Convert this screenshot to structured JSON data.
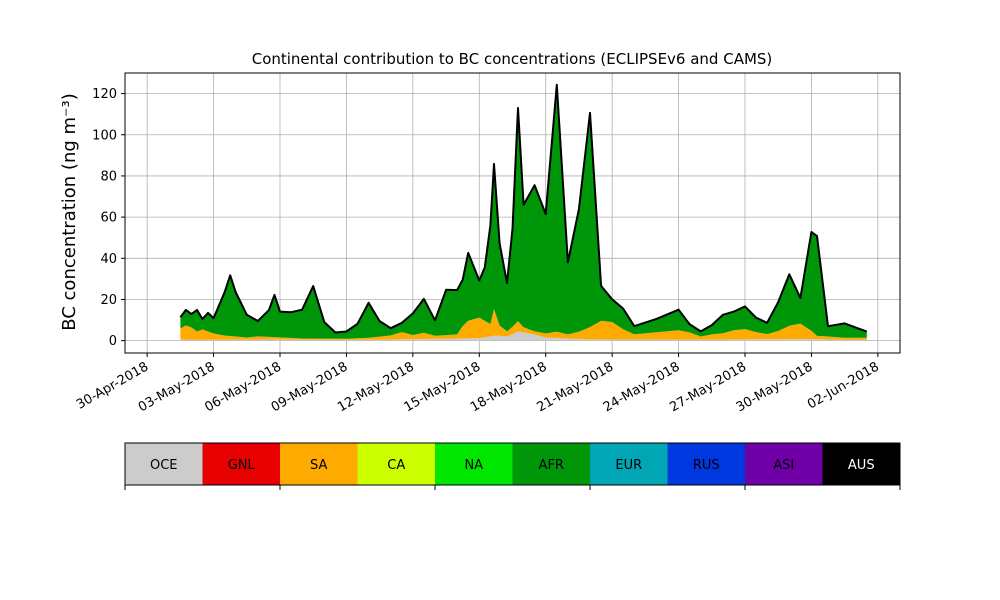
{
  "chart_data": {
    "type": "area",
    "title": "Continental contribution to BC concentrations (ECLIPSEv6 and CAMS)",
    "xlabel": "",
    "ylabel": "BC concentration (ng m⁻³)",
    "xlim": [
      "2018-04-29",
      "2018-06-03"
    ],
    "ylim": [
      -6,
      130
    ],
    "grid": true,
    "x_ticks": [
      {
        "date": "2018-04-30",
        "label": "30-Apr-2018"
      },
      {
        "date": "2018-05-03",
        "label": "03-May-2018"
      },
      {
        "date": "2018-05-06",
        "label": "06-May-2018"
      },
      {
        "date": "2018-05-09",
        "label": "09-May-2018"
      },
      {
        "date": "2018-05-12",
        "label": "12-May-2018"
      },
      {
        "date": "2018-05-15",
        "label": "15-May-2018"
      },
      {
        "date": "2018-05-18",
        "label": "18-May-2018"
      },
      {
        "date": "2018-05-21",
        "label": "21-May-2018"
      },
      {
        "date": "2018-05-24",
        "label": "24-May-2018"
      },
      {
        "date": "2018-05-27",
        "label": "27-May-2018"
      },
      {
        "date": "2018-05-30",
        "label": "30-May-2018"
      },
      {
        "date": "2018-06-02",
        "label": "02-Jun-2018"
      }
    ],
    "y_ticks": [
      0,
      20,
      40,
      60,
      80,
      100,
      120
    ],
    "total_color": "#000000",
    "series": [
      {
        "name": "OCE",
        "color": "#cccccc",
        "points": [
          [
            "2018-05-01 12:00",
            0.4
          ],
          [
            "2018-05-06 00:00",
            0.6
          ],
          [
            "2018-05-10 00:00",
            0.4
          ],
          [
            "2018-05-15 00:00",
            1.2
          ],
          [
            "2018-05-15 18:00",
            2.5
          ],
          [
            "2018-05-16 06:00",
            2.0
          ],
          [
            "2018-05-16 18:00",
            4.5
          ],
          [
            "2018-05-17 12:00",
            3.0
          ],
          [
            "2018-05-18 00:00",
            1.5
          ],
          [
            "2018-05-20 00:00",
            0.6
          ],
          [
            "2018-05-25 00:00",
            0.5
          ],
          [
            "2018-05-30 06:00",
            0.8
          ],
          [
            "2018-05-31 00:00",
            0.4
          ],
          [
            "2018-06-01 12:00",
            0.4
          ]
        ]
      },
      {
        "name": "SA",
        "color": "#ffaa00",
        "points": [
          [
            "2018-05-01 12:00",
            5.5
          ],
          [
            "2018-05-01 18:00",
            7.0
          ],
          [
            "2018-05-02 00:00",
            6.0
          ],
          [
            "2018-05-02 06:00",
            4.0
          ],
          [
            "2018-05-02 12:00",
            5.0
          ],
          [
            "2018-05-02 18:00",
            4.0
          ],
          [
            "2018-05-03 00:00",
            3.0
          ],
          [
            "2018-05-03 12:00",
            2.0
          ],
          [
            "2018-05-04 00:00",
            1.5
          ],
          [
            "2018-05-04 12:00",
            1.0
          ],
          [
            "2018-05-05 00:00",
            1.5
          ],
          [
            "2018-05-06 00:00",
            1.0
          ],
          [
            "2018-05-07 00:00",
            0.5
          ],
          [
            "2018-05-08 00:00",
            0.5
          ],
          [
            "2018-05-09 00:00",
            0.5
          ],
          [
            "2018-05-10 00:00",
            1.0
          ],
          [
            "2018-05-11 00:00",
            2.0
          ],
          [
            "2018-05-11 12:00",
            3.5
          ],
          [
            "2018-05-12 00:00",
            2.0
          ],
          [
            "2018-05-12 12:00",
            3.0
          ],
          [
            "2018-05-13 00:00",
            1.5
          ],
          [
            "2018-05-14 00:00",
            2.0
          ],
          [
            "2018-05-14 06:00",
            6.0
          ],
          [
            "2018-05-14 12:00",
            8.5
          ],
          [
            "2018-05-15 00:00",
            10.0
          ],
          [
            "2018-05-15 06:00",
            8.0
          ],
          [
            "2018-05-15 12:00",
            6.0
          ],
          [
            "2018-05-15 16:00",
            13.0
          ],
          [
            "2018-05-15 22:00",
            5.0
          ],
          [
            "2018-05-16 06:00",
            2.5
          ],
          [
            "2018-05-16 12:00",
            3.5
          ],
          [
            "2018-05-16 18:00",
            5.0
          ],
          [
            "2018-05-17 00:00",
            2.5
          ],
          [
            "2018-05-17 12:00",
            1.5
          ],
          [
            "2018-05-18 00:00",
            2.0
          ],
          [
            "2018-05-18 12:00",
            3.0
          ],
          [
            "2018-05-19 00:00",
            2.0
          ],
          [
            "2018-05-19 12:00",
            3.5
          ],
          [
            "2018-05-20 00:00",
            6.0
          ],
          [
            "2018-05-20 12:00",
            9.0
          ],
          [
            "2018-05-21 00:00",
            8.5
          ],
          [
            "2018-05-21 12:00",
            5.0
          ],
          [
            "2018-05-22 00:00",
            2.5
          ],
          [
            "2018-05-23 00:00",
            3.5
          ],
          [
            "2018-05-24 00:00",
            4.5
          ],
          [
            "2018-05-24 12:00",
            3.5
          ],
          [
            "2018-05-25 00:00",
            1.5
          ],
          [
            "2018-05-25 12:00",
            2.5
          ],
          [
            "2018-05-26 00:00",
            3.0
          ],
          [
            "2018-05-26 12:00",
            4.5
          ],
          [
            "2018-05-27 00:00",
            5.0
          ],
          [
            "2018-05-27 12:00",
            3.5
          ],
          [
            "2018-05-28 00:00",
            2.5
          ],
          [
            "2018-05-28 12:00",
            4.0
          ],
          [
            "2018-05-29 00:00",
            6.5
          ],
          [
            "2018-05-29 12:00",
            7.5
          ],
          [
            "2018-05-30 00:00",
            4.0
          ],
          [
            "2018-05-30 06:00",
            1.5
          ],
          [
            "2018-05-30 18:00",
            1.5
          ],
          [
            "2018-05-31 12:00",
            1.0
          ],
          [
            "2018-06-01 12:00",
            1.0
          ]
        ]
      },
      {
        "name": "AFR",
        "color": "#00960a",
        "points": [
          [
            "2018-05-01 12:00",
            5.5
          ],
          [
            "2018-05-01 18:00",
            7.5
          ],
          [
            "2018-05-02 00:00",
            6.5
          ],
          [
            "2018-05-02 06:00",
            10.5
          ],
          [
            "2018-05-02 12:00",
            5.0
          ],
          [
            "2018-05-02 18:00",
            9.0
          ],
          [
            "2018-05-03 00:00",
            7.5
          ],
          [
            "2018-05-03 12:00",
            21.0
          ],
          [
            "2018-05-03 18:00",
            29.5
          ],
          [
            "2018-05-04 00:00",
            21.5
          ],
          [
            "2018-05-04 12:00",
            11.0
          ],
          [
            "2018-05-05 00:00",
            7.5
          ],
          [
            "2018-05-05 12:00",
            13.0
          ],
          [
            "2018-05-05 18:00",
            20.5
          ],
          [
            "2018-05-06 00:00",
            12.5
          ],
          [
            "2018-05-06 12:00",
            12.5
          ],
          [
            "2018-05-07 00:00",
            14.0
          ],
          [
            "2018-05-07 12:00",
            25.5
          ],
          [
            "2018-05-08 00:00",
            8.0
          ],
          [
            "2018-05-08 12:00",
            3.0
          ],
          [
            "2018-05-09 00:00",
            3.5
          ],
          [
            "2018-05-09 12:00",
            7.0
          ],
          [
            "2018-05-10 00:00",
            17.0
          ],
          [
            "2018-05-10 12:00",
            7.5
          ],
          [
            "2018-05-11 00:00",
            3.5
          ],
          [
            "2018-05-11 12:00",
            4.5
          ],
          [
            "2018-05-12 00:00",
            10.5
          ],
          [
            "2018-05-12 12:00",
            16.5
          ],
          [
            "2018-05-13 00:00",
            7.5
          ],
          [
            "2018-05-13 12:00",
            22.0
          ],
          [
            "2018-05-14 00:00",
            21.5
          ],
          [
            "2018-05-14 06:00",
            22.5
          ],
          [
            "2018-05-14 12:00",
            33.0
          ],
          [
            "2018-05-15 00:00",
            18.0
          ],
          [
            "2018-05-15 06:00",
            26.0
          ],
          [
            "2018-05-15 12:00",
            48.0
          ],
          [
            "2018-05-15 16:00",
            70.5
          ],
          [
            "2018-05-15 22:00",
            40.0
          ],
          [
            "2018-05-16 06:00",
            23.5
          ],
          [
            "2018-05-16 12:00",
            47.5
          ],
          [
            "2018-05-16 18:00",
            103.5
          ],
          [
            "2018-05-17 00:00",
            59.5
          ],
          [
            "2018-05-17 12:00",
            71.0
          ],
          [
            "2018-05-18 00:00",
            58.0
          ],
          [
            "2018-05-18 12:00",
            120.0
          ],
          [
            "2018-05-19 00:00",
            35.0
          ],
          [
            "2018-05-19 12:00",
            59.5
          ],
          [
            "2018-05-20 00:00",
            104.0
          ],
          [
            "2018-05-20 12:00",
            17.0
          ],
          [
            "2018-05-21 00:00",
            11.0
          ],
          [
            "2018-05-21 12:00",
            10.0
          ],
          [
            "2018-05-22 00:00",
            4.0
          ],
          [
            "2018-05-23 00:00",
            6.5
          ],
          [
            "2018-05-24 00:00",
            10.0
          ],
          [
            "2018-05-24 12:00",
            4.0
          ],
          [
            "2018-05-25 00:00",
            2.5
          ],
          [
            "2018-05-25 12:00",
            4.5
          ],
          [
            "2018-05-26 00:00",
            9.0
          ],
          [
            "2018-05-26 12:00",
            9.0
          ],
          [
            "2018-05-27 00:00",
            11.0
          ],
          [
            "2018-05-27 12:00",
            7.0
          ],
          [
            "2018-05-28 00:00",
            5.5
          ],
          [
            "2018-05-28 12:00",
            14.0
          ],
          [
            "2018-05-29 00:00",
            25.0
          ],
          [
            "2018-05-29 12:00",
            12.5
          ],
          [
            "2018-05-30 00:00",
            48.0
          ],
          [
            "2018-05-30 06:00",
            48.5
          ],
          [
            "2018-05-30 18:00",
            5.0
          ],
          [
            "2018-05-31 12:00",
            7.0
          ],
          [
            "2018-06-01 12:00",
            3.0
          ]
        ]
      }
    ],
    "colorbar": [
      {
        "label": "OCE",
        "color": "#cccccc",
        "text_color": "#000000"
      },
      {
        "label": "GNL",
        "color": "#e60000",
        "text_color": "#000000"
      },
      {
        "label": "SA",
        "color": "#ffaa00",
        "text_color": "#000000"
      },
      {
        "label": "CA",
        "color": "#ccff00",
        "text_color": "#000000"
      },
      {
        "label": "NA",
        "color": "#00e600",
        "text_color": "#000000"
      },
      {
        "label": "AFR",
        "color": "#00960a",
        "text_color": "#000000"
      },
      {
        "label": "EUR",
        "color": "#00a6b4",
        "text_color": "#000000"
      },
      {
        "label": "RUS",
        "color": "#0038e0",
        "text_color": "#000000"
      },
      {
        "label": "ASI",
        "color": "#6f00a8",
        "text_color": "#000000"
      },
      {
        "label": "AUS",
        "color": "#000000",
        "text_color": "#ffffff"
      }
    ]
  }
}
